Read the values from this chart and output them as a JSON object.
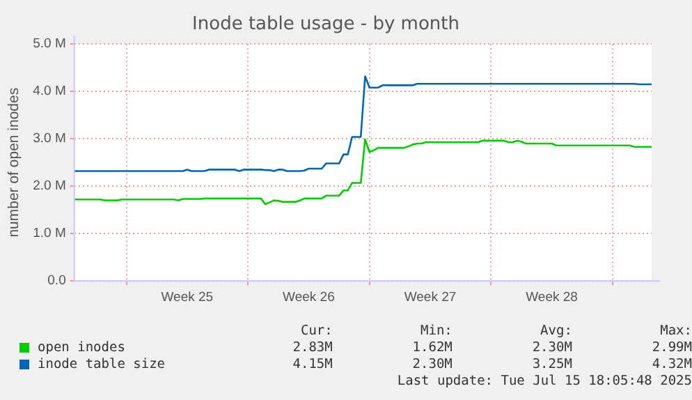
{
  "chart_data": {
    "type": "line",
    "title": "Inode table usage - by month",
    "ylabel": "number of open inodes",
    "categories": [
      null,
      null,
      null,
      null,
      null,
      null,
      null,
      null,
      null,
      null,
      null,
      null,
      null,
      null,
      null,
      null,
      null,
      null,
      null,
      null,
      null,
      null,
      null,
      null,
      null,
      null,
      "Week 25",
      null,
      null,
      null,
      null,
      null,
      null,
      null,
      null,
      null,
      null,
      null,
      null,
      null,
      null,
      null,
      null,
      null,
      null,
      null,
      null,
      null,
      null,
      null,
      null,
      null,
      null,
      null,
      "Week 26",
      null,
      null,
      null,
      null,
      null,
      null,
      null,
      null,
      null,
      null,
      null,
      null,
      null,
      null,
      null,
      null,
      null,
      null,
      null,
      null,
      null,
      null,
      null,
      null,
      null,
      null,
      null,
      "Week 27",
      null,
      null,
      null,
      null,
      null,
      null,
      null,
      null,
      null,
      null,
      null,
      null,
      null,
      null,
      null,
      null,
      null,
      null,
      null,
      null,
      null,
      null,
      null,
      null,
      null,
      null,
      null,
      "Week 28",
      null,
      null,
      null,
      null,
      null,
      null,
      null,
      null,
      null,
      null,
      null,
      null,
      null,
      null,
      null,
      null,
      null,
      null,
      null,
      null,
      null,
      null,
      null
    ],
    "ylim": [
      0,
      5000000
    ],
    "yticks": [
      {
        "value": 0,
        "label": "0.0"
      },
      {
        "value": 1000000,
        "label": "1.0 M"
      },
      {
        "value": 2000000,
        "label": "2.0 M"
      },
      {
        "value": 3000000,
        "label": "3.0 M"
      },
      {
        "value": 4000000,
        "label": "4.0 M"
      },
      {
        "value": 5000000,
        "label": "5.0 M"
      }
    ],
    "grid": true,
    "legend": "bottom",
    "marker": "none",
    "line_style": "solid",
    "series": [
      {
        "name": "open inodes",
        "color": "#00cc00",
        "values": [
          1720000,
          1720000,
          1720000,
          1720000,
          1720000,
          1720000,
          1720000,
          1700000,
          1700000,
          1700000,
          1700000,
          1720000,
          1720000,
          1720000,
          1720000,
          1720000,
          1720000,
          1720000,
          1720000,
          1720000,
          1720000,
          1720000,
          1720000,
          1720000,
          1700000,
          1730000,
          1730000,
          1730000,
          1730000,
          1730000,
          1740000,
          1740000,
          1740000,
          1740000,
          1740000,
          1740000,
          1740000,
          1740000,
          1740000,
          1740000,
          1740000,
          1740000,
          1740000,
          1740000,
          1620000,
          1660000,
          1700000,
          1690000,
          1670000,
          1670000,
          1670000,
          1670000,
          1700000,
          1740000,
          1740000,
          1740000,
          1740000,
          1740000,
          1800000,
          1800000,
          1800000,
          1800000,
          1910000,
          1910000,
          2070000,
          2070000,
          2070000,
          2990000,
          2720000,
          2760000,
          2810000,
          2810000,
          2810000,
          2810000,
          2810000,
          2810000,
          2810000,
          2840000,
          2880000,
          2900000,
          2900000,
          2930000,
          2930000,
          2930000,
          2930000,
          2930000,
          2930000,
          2930000,
          2930000,
          2930000,
          2930000,
          2930000,
          2930000,
          2930000,
          2960000,
          2960000,
          2960000,
          2960000,
          2960000,
          2960000,
          2930000,
          2930000,
          2960000,
          2940000,
          2900000,
          2900000,
          2900000,
          2900000,
          2900000,
          2900000,
          2900000,
          2860000,
          2860000,
          2860000,
          2860000,
          2860000,
          2860000,
          2860000,
          2860000,
          2860000,
          2860000,
          2860000,
          2860000,
          2860000,
          2860000,
          2860000,
          2860000,
          2860000,
          2860000,
          2830000,
          2830000,
          2830000,
          2830000,
          2830000
        ]
      },
      {
        "name": "inode table size",
        "color": "#0066b3",
        "values": [
          2320000,
          2320000,
          2320000,
          2320000,
          2320000,
          2320000,
          2320000,
          2320000,
          2320000,
          2320000,
          2320000,
          2320000,
          2320000,
          2320000,
          2320000,
          2320000,
          2320000,
          2320000,
          2320000,
          2320000,
          2320000,
          2320000,
          2320000,
          2320000,
          2320000,
          2320000,
          2350000,
          2320000,
          2320000,
          2320000,
          2320000,
          2350000,
          2350000,
          2350000,
          2350000,
          2350000,
          2350000,
          2350000,
          2320000,
          2350000,
          2350000,
          2350000,
          2350000,
          2350000,
          2340000,
          2340000,
          2320000,
          2350000,
          2350000,
          2320000,
          2320000,
          2320000,
          2320000,
          2330000,
          2370000,
          2370000,
          2370000,
          2370000,
          2480000,
          2480000,
          2480000,
          2480000,
          2670000,
          2670000,
          3040000,
          3040000,
          3040000,
          4320000,
          4080000,
          4080000,
          4080000,
          4130000,
          4130000,
          4130000,
          4130000,
          4130000,
          4130000,
          4130000,
          4130000,
          4160000,
          4160000,
          4160000,
          4160000,
          4160000,
          4160000,
          4160000,
          4160000,
          4160000,
          4160000,
          4160000,
          4160000,
          4160000,
          4160000,
          4160000,
          4160000,
          4160000,
          4160000,
          4160000,
          4160000,
          4160000,
          4160000,
          4160000,
          4160000,
          4160000,
          4160000,
          4160000,
          4160000,
          4160000,
          4160000,
          4160000,
          4160000,
          4160000,
          4160000,
          4160000,
          4160000,
          4160000,
          4160000,
          4160000,
          4160000,
          4160000,
          4160000,
          4160000,
          4160000,
          4160000,
          4160000,
          4160000,
          4160000,
          4160000,
          4160000,
          4160000,
          4150000,
          4150000,
          4150000,
          4150000
        ]
      }
    ],
    "annotations": [
      "Cur:",
      "Min:",
      "Avg:",
      "Max:",
      "2.83M",
      "1.62M",
      "2.30M",
      "2.99M",
      "4.15M",
      "2.30M",
      "3.25M",
      "4.32M",
      "Last update: Tue Jul 15 18:05:48 2025"
    ]
  }
}
